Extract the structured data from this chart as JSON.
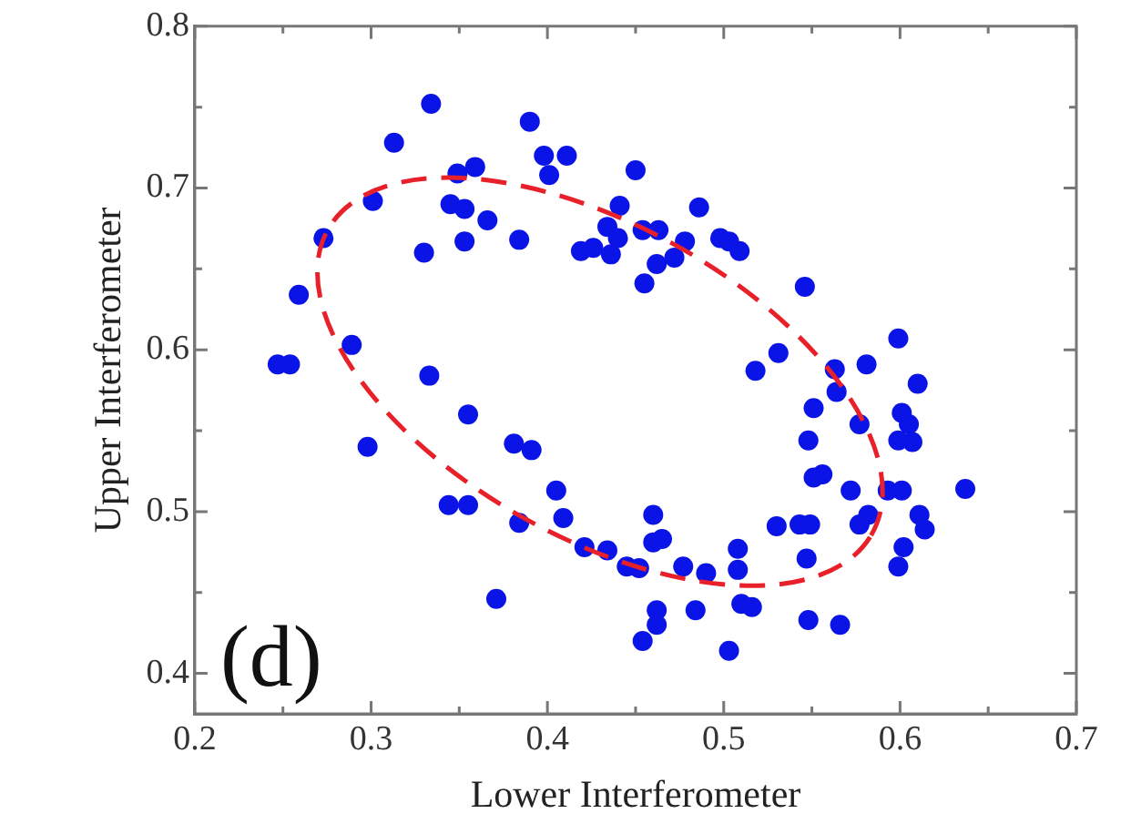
{
  "chart_data": {
    "type": "scatter",
    "xlabel": "Lower Interferometer",
    "ylabel": "Upper Interferometer",
    "xlim": [
      0.2,
      0.7
    ],
    "ylim": [
      0.375,
      0.8
    ],
    "xticks": [
      0.2,
      {
        "value": 0.25,
        "label": null
      },
      0.3,
      {
        "value": 0.35,
        "label": null
      },
      0.4,
      {
        "value": 0.45,
        "label": null
      },
      0.5,
      {
        "value": 0.55,
        "label": null
      },
      0.6,
      {
        "value": 0.65,
        "label": null
      },
      0.7
    ],
    "yticks": [
      0.4,
      {
        "value": 0.45,
        "label": null
      },
      0.5,
      {
        "value": 0.55,
        "label": null
      },
      0.6,
      {
        "value": 0.65,
        "label": null
      },
      0.7,
      {
        "value": 0.75,
        "label": null
      },
      0.8
    ],
    "grid": false,
    "legend": false,
    "annotations": [
      "(d)"
    ],
    "series": [
      {
        "marker": "circle",
        "color": "#0a14e6",
        "x": [
          0.259,
          0.273,
          0.301,
          0.313,
          0.334,
          0.33,
          0.345,
          0.349,
          0.359,
          0.353,
          0.366,
          0.353,
          0.384,
          0.39,
          0.398,
          0.401,
          0.411,
          0.419,
          0.426,
          0.436,
          0.434,
          0.44,
          0.441,
          0.45,
          0.454,
          0.455,
          0.463,
          0.462,
          0.472,
          0.478,
          0.486,
          0.498,
          0.503,
          0.509,
          0.546,
          0.599,
          0.531,
          0.518,
          0.581,
          0.563,
          0.61,
          0.564,
          0.551,
          0.577,
          0.601,
          0.605,
          0.599,
          0.607,
          0.548,
          0.556,
          0.551,
          0.572,
          0.593,
          0.601,
          0.637,
          0.582,
          0.577,
          0.611,
          0.614,
          0.53,
          0.543,
          0.549,
          0.602,
          0.599,
          0.547,
          0.46,
          0.465,
          0.46,
          0.508,
          0.508,
          0.445,
          0.452,
          0.477,
          0.49,
          0.51,
          0.516,
          0.462,
          0.462,
          0.484,
          0.454,
          0.503,
          0.548,
          0.566,
          0.247,
          0.254,
          0.289,
          0.333,
          0.298,
          0.355,
          0.381,
          0.391,
          0.344,
          0.355,
          0.384,
          0.405,
          0.409,
          0.421,
          0.434,
          0.371
        ],
        "values": [
          0.634,
          0.669,
          0.692,
          0.728,
          0.752,
          0.66,
          0.69,
          0.709,
          0.713,
          0.687,
          0.68,
          0.667,
          0.668,
          0.741,
          0.72,
          0.708,
          0.72,
          0.661,
          0.663,
          0.659,
          0.676,
          0.669,
          0.689,
          0.711,
          0.674,
          0.641,
          0.674,
          0.653,
          0.657,
          0.667,
          0.688,
          0.669,
          0.667,
          0.661,
          0.639,
          0.607,
          0.598,
          0.587,
          0.591,
          0.588,
          0.579,
          0.574,
          0.564,
          0.554,
          0.561,
          0.554,
          0.544,
          0.543,
          0.544,
          0.523,
          0.521,
          0.513,
          0.513,
          0.513,
          0.514,
          0.498,
          0.492,
          0.498,
          0.489,
          0.491,
          0.492,
          0.492,
          0.478,
          0.466,
          0.471,
          0.498,
          0.483,
          0.481,
          0.477,
          0.464,
          0.466,
          0.465,
          0.466,
          0.462,
          0.443,
          0.441,
          0.439,
          0.43,
          0.439,
          0.42,
          0.414,
          0.433,
          0.43,
          0.591,
          0.591,
          0.603,
          0.584,
          0.54,
          0.56,
          0.542,
          0.538,
          0.504,
          0.504,
          0.493,
          0.513,
          0.496,
          0.478,
          0.476,
          0.446
        ]
      }
    ]
  }
}
